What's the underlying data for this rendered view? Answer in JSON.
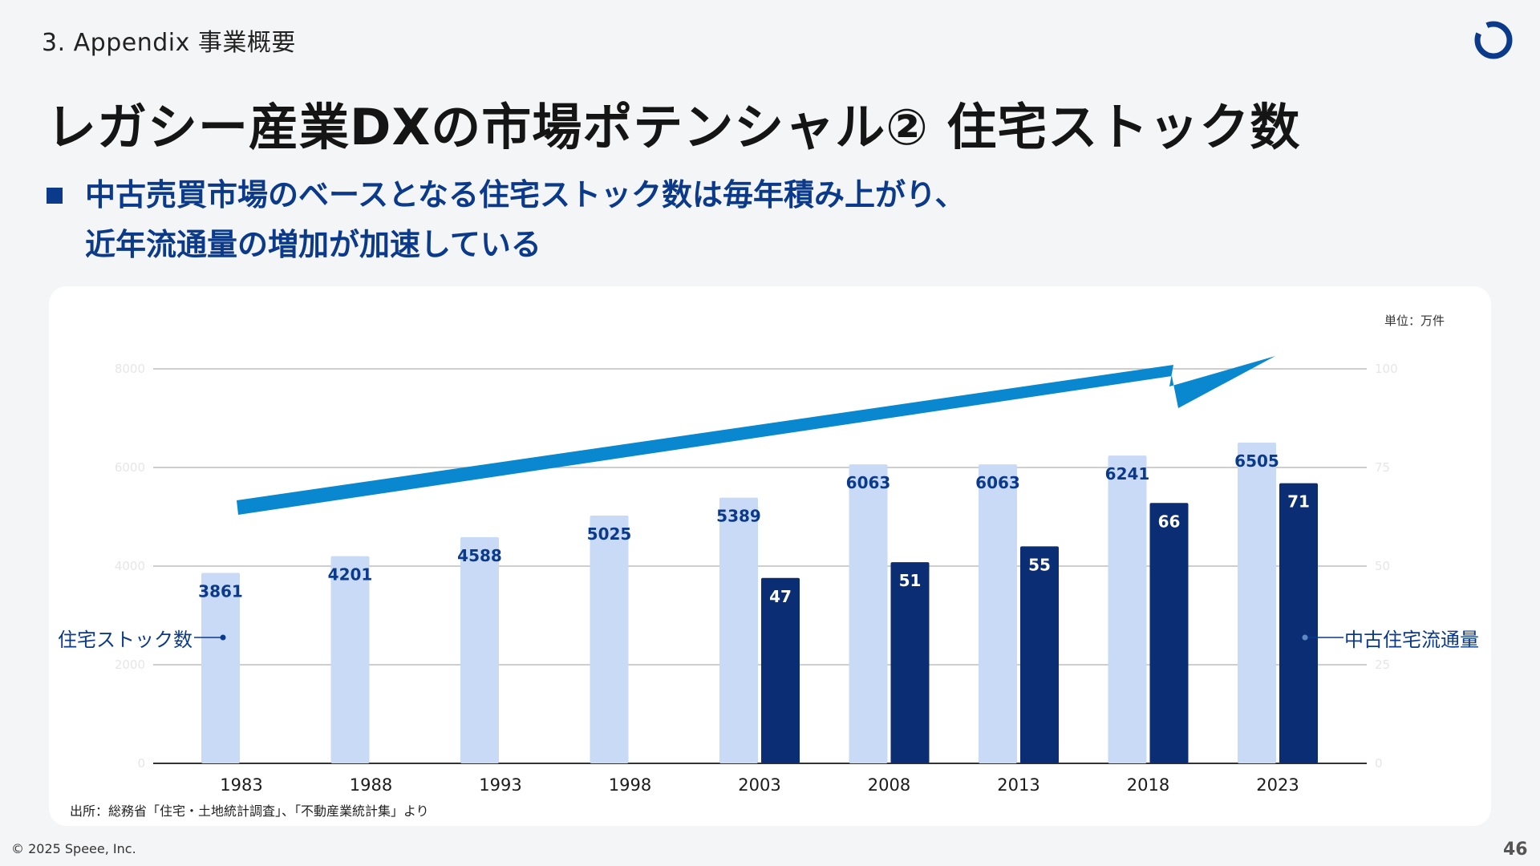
{
  "header": {
    "section": "3. Appendix 事業概要",
    "title": "レガシー産業DXの市場ポテンシャル② 住宅ストック数"
  },
  "subtitle": {
    "line1": "中古売買市場のベースとなる住宅ストック数は毎年積み上がり、",
    "line2": "近年流通量の増加が加速している"
  },
  "colors": {
    "stock_bar": "#c9daf6",
    "circulation_bar": "#0b2d74",
    "accent": "#0b3a8b",
    "arrow": "#0a88cf"
  },
  "chart_data": {
    "type": "bar",
    "unit_label": "単位：万件",
    "categories": [
      "1983",
      "1988",
      "1993",
      "1998",
      "2003",
      "2008",
      "2013",
      "2018",
      "2023"
    ],
    "series": [
      {
        "name": "住宅ストック数",
        "axis": "left",
        "values": [
          3861,
          4201,
          4588,
          5025,
          5389,
          6063,
          6063,
          6241,
          6505
        ]
      },
      {
        "name": "中古住宅流通量",
        "axis": "right",
        "values": [
          null,
          null,
          null,
          null,
          47,
          51,
          55,
          66,
          71
        ]
      }
    ],
    "left_axis": {
      "ylim": [
        0,
        8000
      ],
      "ticks": [
        "0",
        "2000",
        "4000",
        "6000",
        "8000"
      ]
    },
    "right_axis": {
      "ylim": [
        0,
        100
      ],
      "ticks": [
        "0",
        "25",
        "50",
        "75",
        "100"
      ]
    },
    "trend": "increasing",
    "grid": true
  },
  "labels": {
    "stock": "住宅ストック数",
    "circulation": "中古住宅流通量"
  },
  "source": "出所：総務省「住宅・土地統計調査」、「不動産業統計集」より",
  "footer": {
    "copyright": "© 2025 Speee, Inc.",
    "page": "46"
  }
}
